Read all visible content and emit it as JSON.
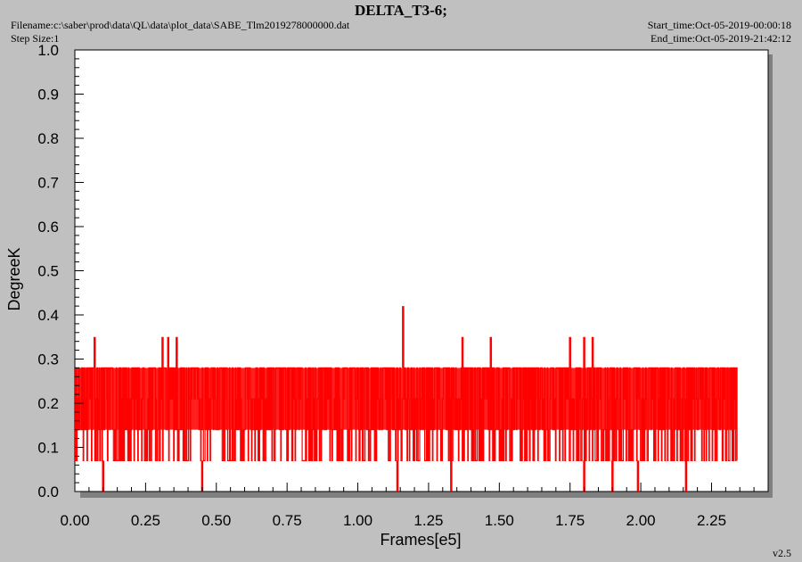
{
  "header": {
    "title": "DELTA_T3-6;",
    "filename": "Filename:c:\\saber\\prod\\data\\QL\\data\\plot_data\\SABE_Tlm2019278000000.dat",
    "step_size": "Step Size:1",
    "start_time": "Start_time:Oct-05-2019-00:00:18",
    "end_time": "End_time:Oct-05-2019-21:42:12"
  },
  "footer": {
    "version": "v2.5"
  },
  "chart_data": {
    "type": "line",
    "title": "DELTA_T3-6;",
    "xlabel": "Frames[e5]",
    "ylabel": "DegreeK",
    "xlim": [
      0,
      2.45
    ],
    "ylim": [
      0,
      1.0
    ],
    "x_ticks": [
      "0.00",
      "0.25",
      "0.50",
      "0.75",
      "1.00",
      "1.25",
      "1.50",
      "1.75",
      "2.00",
      "2.25"
    ],
    "y_ticks": [
      "0.0",
      "0.1",
      "0.2",
      "0.3",
      "0.4",
      "0.5",
      "0.6",
      "0.7",
      "0.8",
      "0.9",
      "1.0"
    ],
    "grid": false,
    "series": [
      {
        "color": "#ff0000",
        "x_range": [
          0,
          2.34
        ],
        "typical_band": [
          0.07,
          0.28
        ],
        "quantized_levels": [
          0.0,
          0.07,
          0.14,
          0.21,
          0.28,
          0.35,
          0.42
        ],
        "spikes": [
          {
            "x": 0.07,
            "y": 0.35
          },
          {
            "x": 0.31,
            "y": 0.35
          },
          {
            "x": 0.33,
            "y": 0.35
          },
          {
            "x": 0.36,
            "y": 0.35
          },
          {
            "x": 1.16,
            "y": 0.42
          },
          {
            "x": 1.37,
            "y": 0.35
          },
          {
            "x": 1.47,
            "y": 0.35
          },
          {
            "x": 1.75,
            "y": 0.35
          },
          {
            "x": 1.8,
            "y": 0.35
          },
          {
            "x": 1.83,
            "y": 0.35
          }
        ],
        "dips": [
          {
            "x": 0.1,
            "y": 0.0
          },
          {
            "x": 0.45,
            "y": 0.0
          },
          {
            "x": 1.14,
            "y": 0.0
          },
          {
            "x": 1.33,
            "y": 0.0
          },
          {
            "x": 1.8,
            "y": 0.0
          },
          {
            "x": 1.9,
            "y": 0.0
          },
          {
            "x": 1.99,
            "y": 0.0
          },
          {
            "x": 2.16,
            "y": 0.0
          }
        ]
      }
    ]
  }
}
